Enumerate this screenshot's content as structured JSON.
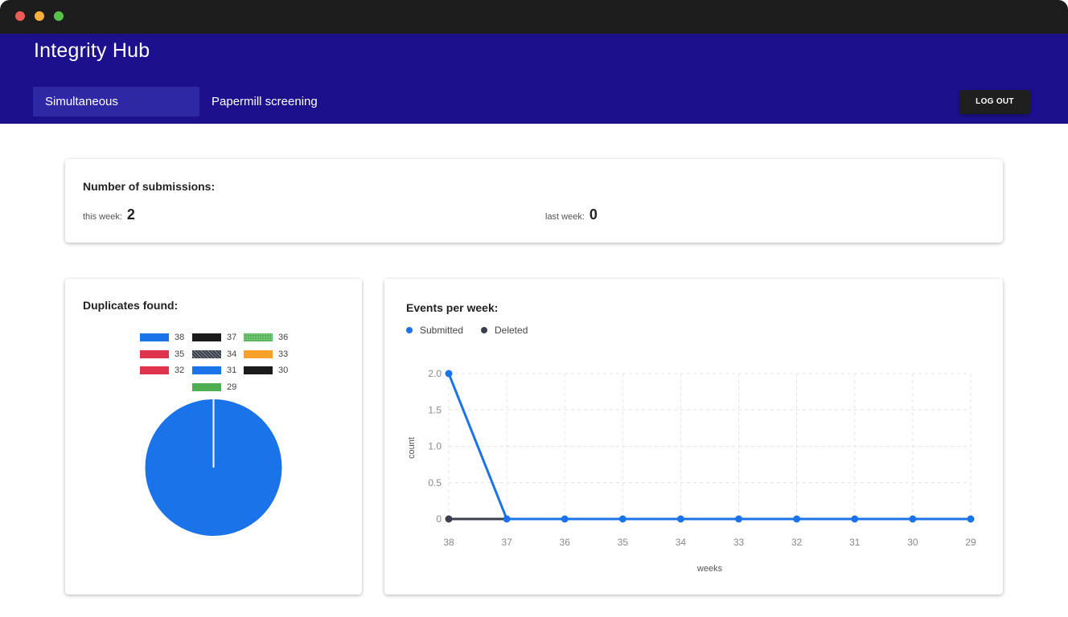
{
  "window": {
    "traffic_lights": [
      "close",
      "minimize",
      "zoom"
    ]
  },
  "header": {
    "title": "Integrity Hub",
    "tabs": [
      {
        "label": "Simultaneous submissions",
        "active": true
      },
      {
        "label": "Papermill screening",
        "active": false
      }
    ],
    "logout_label": "LOG OUT"
  },
  "colors": {
    "header_bg": "#1c108c",
    "active_tab_bg": "#2e28a4",
    "submitted": "#1a73e8",
    "deleted": "#3b3f4e"
  },
  "submissions": {
    "title": "Number of submissions:",
    "this_week_label": "this week:",
    "this_week_value": "2",
    "last_week_label": "last week:",
    "last_week_value": "0"
  },
  "duplicates": {
    "title": "Duplicates found:"
  },
  "events": {
    "title": "Events per week:"
  },
  "chart_data": [
    {
      "type": "pie",
      "legend": [
        {
          "label": "38",
          "color": "#1a73e8",
          "pattern": "solid"
        },
        {
          "label": "37",
          "color": "#1b1b1b",
          "pattern": "solid"
        },
        {
          "label": "36",
          "color": "#4caf50",
          "pattern": "dotted"
        },
        {
          "label": "35",
          "color": "#e0334d",
          "pattern": "solid"
        },
        {
          "label": "34",
          "color": "#3a3f4c",
          "pattern": "hatched"
        },
        {
          "label": "33",
          "color": "#f7a12a",
          "pattern": "solid"
        },
        {
          "label": "32",
          "color": "#e0334d",
          "pattern": "solid"
        },
        {
          "label": "31",
          "color": "#1a73e8",
          "pattern": "solid"
        },
        {
          "label": "30",
          "color": "#1b1b1b",
          "pattern": "solid"
        },
        {
          "label": "29",
          "color": "#4caf50",
          "pattern": "solid"
        }
      ],
      "slices": [
        {
          "label": "38",
          "value": 1,
          "color": "#1a73e8"
        }
      ],
      "legend_position": "top"
    },
    {
      "type": "line",
      "xlabel": "weeks",
      "ylabel": "count",
      "categories": [
        "38",
        "37",
        "36",
        "35",
        "34",
        "33",
        "32",
        "31",
        "30",
        "29"
      ],
      "y_ticks": [
        "2.0",
        "1.5",
        "1.0",
        "0.5",
        "0"
      ],
      "y_tick_values": [
        2.0,
        1.5,
        1.0,
        0.5,
        0
      ],
      "ylim": [
        0,
        2
      ],
      "grid": true,
      "legend_position": "top-left",
      "series": [
        {
          "name": "Submitted",
          "color": "#1a73e8",
          "values": [
            2,
            0,
            0,
            0,
            0,
            0,
            0,
            0,
            0,
            0
          ]
        },
        {
          "name": "Deleted",
          "color": "#3b3f4e",
          "values": [
            0,
            0,
            null,
            null,
            null,
            null,
            null,
            null,
            null,
            null
          ]
        }
      ]
    }
  ]
}
